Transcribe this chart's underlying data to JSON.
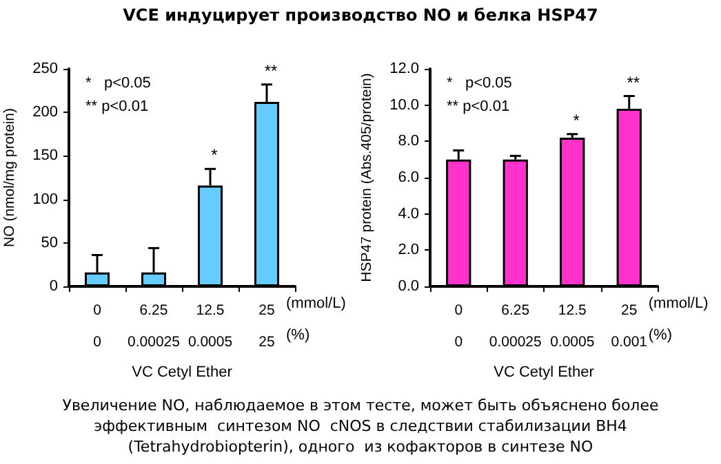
{
  "chart_data": [
    {
      "type": "bar",
      "title": "VCE индуцирует производство NO и белка HSP47",
      "xlabel": "VC Cetyl Ether",
      "ylabel": "NO (nmol/mg protein)",
      "categories": [
        "0\n0",
        "6.25\n0.00025",
        "12.5\n0.0005",
        "25\n25"
      ],
      "values": [
        16,
        16,
        116,
        212
      ],
      "color": "#66ccff",
      "errors": [
        [
          16,
          36
        ],
        [
          16,
          44
        ],
        [
          116,
          135
        ],
        [
          212,
          232
        ]
      ],
      "ylim": [
        0,
        250
      ],
      "yticks": [
        0,
        50,
        100,
        150,
        200,
        250
      ],
      "grid": false,
      "annotations": [
        "*   p<0.05\n** p<0.01",
        "(mmol/L)",
        "(%)",
        "Увеличение NO, наблюдаемое в этом тесте, может быть объяснено более\nэффективным  синтезом NO  cNOS в следствии стабилизации BH4\n(Tetrahydrobiopterin), одного  из кофакторов в синтезе NO",
        {
          "text": "*",
          "x": "12.5\n0.0005",
          "y": 135
        },
        {
          "text": "**",
          "x": "25\n25",
          "y": 232
        }
      ]
    },
    {
      "type": "bar",
      "xlabel": "VC Cetyl Ether",
      "ylabel": "HSP47 protein (Abs.405/protein)",
      "categories": [
        "0\n0",
        "6.25\n0.00025",
        "12.5\n0.0005",
        "25\n0.001"
      ],
      "values": [
        7.0,
        7.0,
        8.2,
        9.8
      ],
      "color": "#ff33cc",
      "errors": [
        [
          7.0,
          7.5
        ],
        [
          7.0,
          7.2
        ],
        [
          8.2,
          8.4
        ],
        [
          9.8,
          10.5
        ]
      ],
      "ylim": [
        0,
        12
      ],
      "yticks": [
        {
          "value": 0,
          "label": "0.0"
        },
        {
          "value": 2,
          "label": "2.0"
        },
        {
          "value": 4,
          "label": "4.0"
        },
        {
          "value": 6,
          "label": "6.0"
        },
        {
          "value": 8,
          "label": "8.0"
        },
        {
          "value": 10,
          "label": "10.0"
        },
        {
          "value": 12,
          "label": "12.0"
        }
      ],
      "grid": false,
      "annotations": [
        "*   p<0.05\n** p<0.01",
        "(mmol/L)",
        "(%)",
        {
          "text": "*",
          "x": "12.5\n0.0005",
          "y": 8.4
        },
        {
          "text": "**",
          "x": "25\n0.001",
          "y": 10.5
        }
      ]
    }
  ]
}
